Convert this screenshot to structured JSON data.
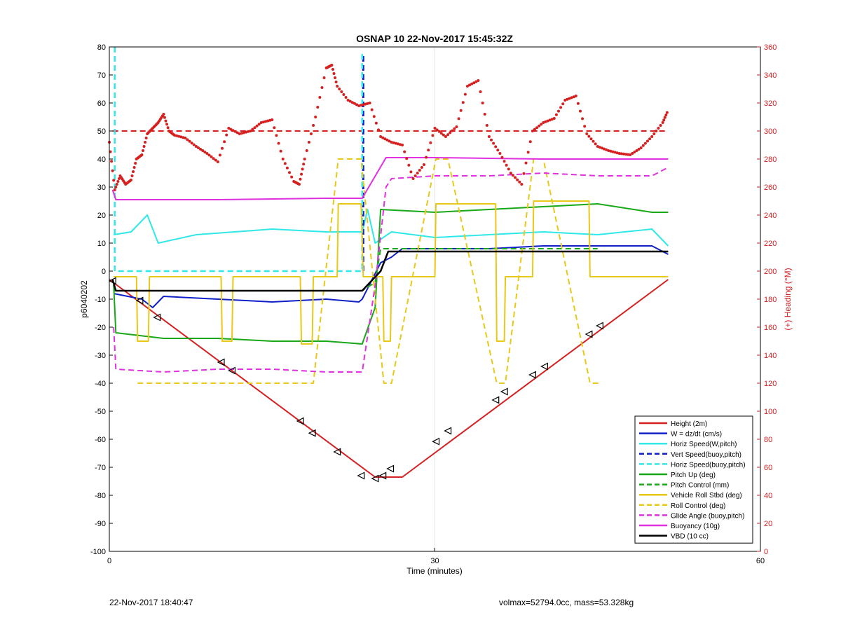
{
  "chart_data": {
    "type": "line",
    "title": "OSNAP 10 22-Nov-2017 15:45:32Z",
    "xlabel": "Time (minutes)",
    "ylabel": "p6040202",
    "y2label": "(+) Heading (°M)",
    "xlim": [
      0,
      60
    ],
    "ylim": [
      -100,
      80
    ],
    "y2lim": [
      0,
      360
    ],
    "xticks": [
      0,
      30,
      60
    ],
    "yticks": [
      -100,
      -90,
      -80,
      -70,
      -60,
      -50,
      -40,
      -30,
      -20,
      -10,
      0,
      10,
      20,
      30,
      40,
      50,
      60,
      70,
      80
    ],
    "y2ticks": [
      0,
      20,
      40,
      60,
      80,
      100,
      120,
      140,
      160,
      180,
      200,
      220,
      240,
      260,
      280,
      300,
      320,
      340,
      360
    ],
    "grid": "vertical-only",
    "legend_position": "bottom-right",
    "colors": {
      "height": "#d62020",
      "w": "#1020c8",
      "horiz_speed": "#30e8e8",
      "pitch": "#18a818",
      "roll": "#e8c818",
      "glide": "#e030e0",
      "buoyancy": "#e030e0",
      "vbd": "#000000",
      "heading_axis": "#cc2020"
    },
    "series": [
      {
        "name": "Height (2m)",
        "key": "height",
        "style": "solid",
        "x": [
          0,
          24.5,
          27,
          51.5
        ],
        "y": [
          -3,
          -73.5,
          -73.5,
          -3
        ]
      },
      {
        "name": "W = dz/dt (cm/s)",
        "key": "w",
        "style": "solid",
        "x": [
          0.4,
          3,
          4,
          5,
          10,
          15,
          20,
          23,
          23.3,
          25,
          26,
          27,
          30,
          35,
          40,
          45,
          50,
          51.5
        ],
        "y": [
          -8,
          -10,
          -13,
          -9,
          -10,
          -11,
          -10,
          -11,
          -10,
          3,
          5,
          8,
          8,
          8,
          9,
          9,
          9,
          6
        ]
      },
      {
        "name": "Horiz Speed(W,pitch)",
        "key": "horiz_speed",
        "style": "solid",
        "x": [
          0.4,
          2,
          3.5,
          4.5,
          8,
          15,
          20,
          23.3,
          23.8,
          24.5,
          26,
          30,
          35,
          40,
          45,
          50,
          51.5
        ],
        "y": [
          13,
          14,
          20,
          10,
          13,
          15,
          14,
          14,
          22,
          10,
          14,
          12,
          13,
          14,
          13,
          15,
          9
        ]
      },
      {
        "name": "Vert Speed(buoy,pitch)",
        "key": "vert_speed",
        "style": "dashed",
        "x": [
          23.4,
          23.4
        ],
        "y": [
          0,
          78
        ]
      },
      {
        "name": "Horiz Speed(buoy,pitch)",
        "key": "horiz_speed_buoy",
        "style": "dashed",
        "x": [
          0.5,
          0.5,
          0.7,
          23.2,
          23.3,
          23.3
        ],
        "y": [
          80,
          0,
          0,
          0,
          0,
          78
        ]
      },
      {
        "name": "Pitch Up (deg)",
        "key": "pitch",
        "style": "solid",
        "x": [
          0.4,
          0.6,
          5,
          10,
          15,
          20,
          23.3,
          24.5,
          25,
          30,
          35,
          40,
          45,
          50,
          51.5
        ],
        "y": [
          -5,
          -22,
          -24,
          -24,
          -25,
          -25,
          -26,
          -13,
          22,
          21,
          22,
          23,
          24,
          21,
          21
        ]
      },
      {
        "name": "Pitch Control (mm)",
        "key": "pitch_control",
        "style": "dashed",
        "x": [
          0.4,
          23.3,
          24.5,
          25,
          30,
          35,
          40,
          45
        ],
        "y": [
          -7,
          -7,
          -4,
          8,
          8,
          8,
          8,
          8
        ]
      },
      {
        "name": "Vehicle Roll Stbd (deg)",
        "key": "roll",
        "style": "solid",
        "x": [
          0.4,
          2.5,
          2.6,
          3.6,
          3.7,
          10.3,
          10.4,
          11.3,
          11.4,
          17.6,
          17.7,
          18.7,
          18.8,
          21,
          21.1,
          23.2,
          23.4,
          25.2,
          25.3,
          25.9,
          26,
          30,
          30.1,
          35.6,
          35.7,
          36.4,
          36.5,
          39,
          39.1,
          44.2,
          44.3,
          51.5
        ],
        "y": [
          -2,
          -2,
          -25,
          -25,
          -2,
          -2,
          -25,
          -25,
          -2,
          -2,
          -26,
          -26,
          -2,
          -2,
          24,
          24,
          -2,
          -2,
          -25,
          -25,
          -2,
          -2,
          24,
          24,
          -25,
          -25,
          -2,
          -2,
          25,
          25,
          -2,
          -2
        ]
      },
      {
        "name": "Roll Control (deg)",
        "key": "roll_control",
        "style": "dashed",
        "x": [
          2.6,
          3.7,
          10.4,
          11.4,
          17.7,
          18.8,
          21.1,
          23.2,
          25.3,
          26,
          30.1,
          31.2,
          35.7,
          36.5,
          39.1,
          40,
          44.3,
          45.3
        ],
        "y": [
          -40,
          -40,
          -40,
          -40,
          -40,
          -40,
          40,
          40,
          -40,
          -40,
          40,
          40,
          -40,
          -40,
          40,
          40,
          -40,
          -40
        ]
      },
      {
        "name": "Glide Angle (buoy,pitch)",
        "key": "glide",
        "style": "dashed",
        "x": [
          0.4,
          0.6,
          5,
          10,
          15,
          20,
          23.3,
          24.5,
          25.5,
          26,
          30,
          35,
          40,
          45,
          50,
          51.5
        ],
        "y": [
          -20,
          -35,
          -36,
          -35,
          -35,
          -36,
          -36,
          -5,
          30,
          33,
          34,
          34,
          35,
          34,
          34,
          37
        ]
      },
      {
        "name": "Buoyancy (10g)",
        "key": "buoyancy",
        "style": "solid",
        "x": [
          0.3,
          0.6,
          10,
          20,
          23.3,
          25.5,
          30,
          40,
          51.5
        ],
        "y": [
          29,
          25.5,
          25.5,
          26,
          26,
          40.5,
          40.5,
          40,
          40
        ]
      },
      {
        "name": "VBD (10 cc)",
        "key": "vbd",
        "style": "solid",
        "x": [
          0.3,
          0.6,
          10,
          20,
          23.3,
          25,
          25.7,
          30,
          40,
          51.5
        ],
        "y": [
          -3,
          -7,
          -7,
          -7,
          -7,
          0,
          7,
          7,
          7,
          7
        ]
      }
    ],
    "heading_target": {
      "value": 300,
      "style": "dashed"
    },
    "heading": {
      "axis": "right",
      "x": [
        0,
        0.5,
        1,
        1.5,
        2,
        2.5,
        3,
        3.5,
        4,
        4.5,
        5,
        5.5,
        6,
        7,
        8,
        9,
        10,
        11,
        12,
        13,
        14,
        15,
        16,
        17,
        17.5,
        18,
        19,
        20,
        20.5,
        21,
        22,
        23,
        24,
        25,
        26,
        27,
        28,
        29,
        30,
        31,
        32,
        33,
        34,
        35,
        36,
        37,
        38,
        39,
        40,
        41,
        42,
        43,
        44,
        45,
        46,
        47,
        48,
        49,
        50,
        51,
        51.5
      ],
      "y": [
        292,
        258,
        268,
        262,
        265,
        280,
        283,
        298,
        302,
        306,
        312,
        300,
        297,
        295,
        289,
        284,
        278,
        302,
        298,
        300,
        306,
        308,
        280,
        264,
        262,
        280,
        310,
        345,
        347,
        332,
        322,
        318,
        320,
        296,
        292,
        290,
        266,
        276,
        302,
        296,
        303,
        332,
        336,
        296,
        284,
        270,
        262,
        300,
        306,
        309,
        322,
        325,
        298,
        289,
        286,
        284,
        283,
        288,
        296,
        306,
        315
      ]
    },
    "markers": {
      "shape": "triangle-outline",
      "points": [
        [
          0.3,
          -3.5
        ],
        [
          2.8,
          -10.5
        ],
        [
          4.4,
          -16.5
        ],
        [
          10.3,
          -32.5
        ],
        [
          11.3,
          -35.5
        ],
        [
          17.6,
          -53.5
        ],
        [
          18.7,
          -57.8
        ],
        [
          21,
          -64.5
        ],
        [
          23.2,
          -73
        ],
        [
          24.5,
          -74
        ],
        [
          25.2,
          -73
        ],
        [
          25.9,
          -70.5
        ],
        [
          30.1,
          -60.8
        ],
        [
          31.2,
          -57
        ],
        [
          35.6,
          -46
        ],
        [
          36.4,
          -43
        ],
        [
          39,
          -37
        ],
        [
          40.1,
          -34
        ],
        [
          44.2,
          -22.5
        ],
        [
          45.2,
          -19.5
        ]
      ]
    }
  },
  "footer": {
    "left": "22-Nov-2017 18:40:47",
    "right": "volmax=52794.0cc, mass=53.328kg"
  }
}
